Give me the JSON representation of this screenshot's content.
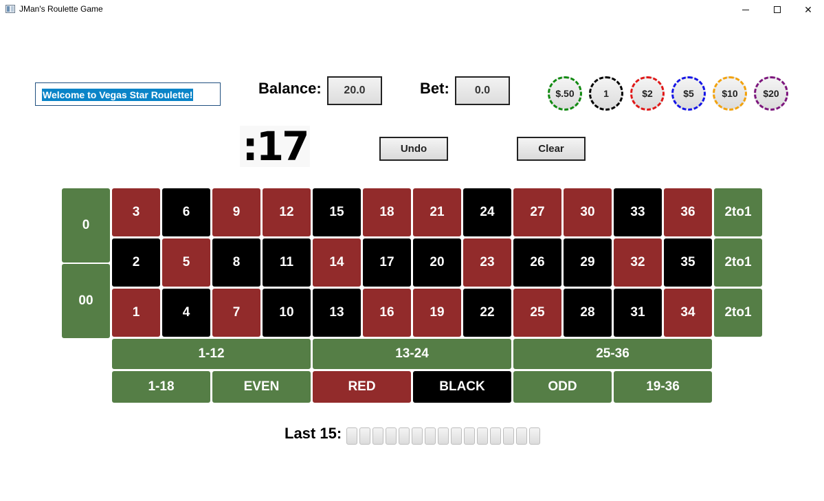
{
  "window": {
    "title": "JMan's Roulette Game"
  },
  "welcome": {
    "text": "Welcome to Vegas Star Roulette!"
  },
  "balance": {
    "label": "Balance:",
    "value": "20.0"
  },
  "bet": {
    "label": "Bet:",
    "value": "0.0"
  },
  "chips": [
    {
      "label": "$.50",
      "color": "#118a11"
    },
    {
      "label": "1",
      "color": "#000000"
    },
    {
      "label": "$2",
      "color": "#e01818"
    },
    {
      "label": "$5",
      "color": "#1515e6"
    },
    {
      "label": "$10",
      "color": "#f2a20c"
    },
    {
      "label": "$20",
      "color": "#7d167d"
    }
  ],
  "timer": {
    "text": ":17"
  },
  "controls": {
    "undo_label": "Undo",
    "clear_label": "Clear"
  },
  "board": {
    "zero_label": "0",
    "double_zero_label": "00",
    "colors": {
      "red": "#922b2b",
      "black": "#000000",
      "green": "#557e46"
    },
    "rows": [
      [
        {
          "n": "3",
          "color": "red"
        },
        {
          "n": "6",
          "color": "black"
        },
        {
          "n": "9",
          "color": "red"
        },
        {
          "n": "12",
          "color": "red"
        },
        {
          "n": "15",
          "color": "black"
        },
        {
          "n": "18",
          "color": "red"
        },
        {
          "n": "21",
          "color": "red"
        },
        {
          "n": "24",
          "color": "black"
        },
        {
          "n": "27",
          "color": "red"
        },
        {
          "n": "30",
          "color": "red"
        },
        {
          "n": "33",
          "color": "black"
        },
        {
          "n": "36",
          "color": "red"
        }
      ],
      [
        {
          "n": "2",
          "color": "black"
        },
        {
          "n": "5",
          "color": "red"
        },
        {
          "n": "8",
          "color": "black"
        },
        {
          "n": "11",
          "color": "black"
        },
        {
          "n": "14",
          "color": "red"
        },
        {
          "n": "17",
          "color": "black"
        },
        {
          "n": "20",
          "color": "black"
        },
        {
          "n": "23",
          "color": "red"
        },
        {
          "n": "26",
          "color": "black"
        },
        {
          "n": "29",
          "color": "black"
        },
        {
          "n": "32",
          "color": "red"
        },
        {
          "n": "35",
          "color": "black"
        }
      ],
      [
        {
          "n": "1",
          "color": "red"
        },
        {
          "n": "4",
          "color": "black"
        },
        {
          "n": "7",
          "color": "red"
        },
        {
          "n": "10",
          "color": "black"
        },
        {
          "n": "13",
          "color": "black"
        },
        {
          "n": "16",
          "color": "red"
        },
        {
          "n": "19",
          "color": "red"
        },
        {
          "n": "22",
          "color": "black"
        },
        {
          "n": "25",
          "color": "red"
        },
        {
          "n": "28",
          "color": "black"
        },
        {
          "n": "31",
          "color": "black"
        },
        {
          "n": "34",
          "color": "red"
        }
      ]
    ],
    "column_bets": [
      "2to1",
      "2to1",
      "2to1"
    ],
    "dozens": [
      "1-12",
      "13-24",
      "25-36"
    ],
    "outside": [
      {
        "label": "1-18",
        "color": "green"
      },
      {
        "label": "EVEN",
        "color": "green"
      },
      {
        "label": "RED",
        "color": "red"
      },
      {
        "label": "BLACK",
        "color": "black"
      },
      {
        "label": "ODD",
        "color": "green"
      },
      {
        "label": "19-36",
        "color": "green"
      }
    ]
  },
  "history": {
    "label": "Last 15:",
    "results": [
      "",
      "",
      "",
      "",
      "",
      "",
      "",
      "",
      "",
      "",
      "",
      "",
      "",
      "",
      ""
    ]
  }
}
